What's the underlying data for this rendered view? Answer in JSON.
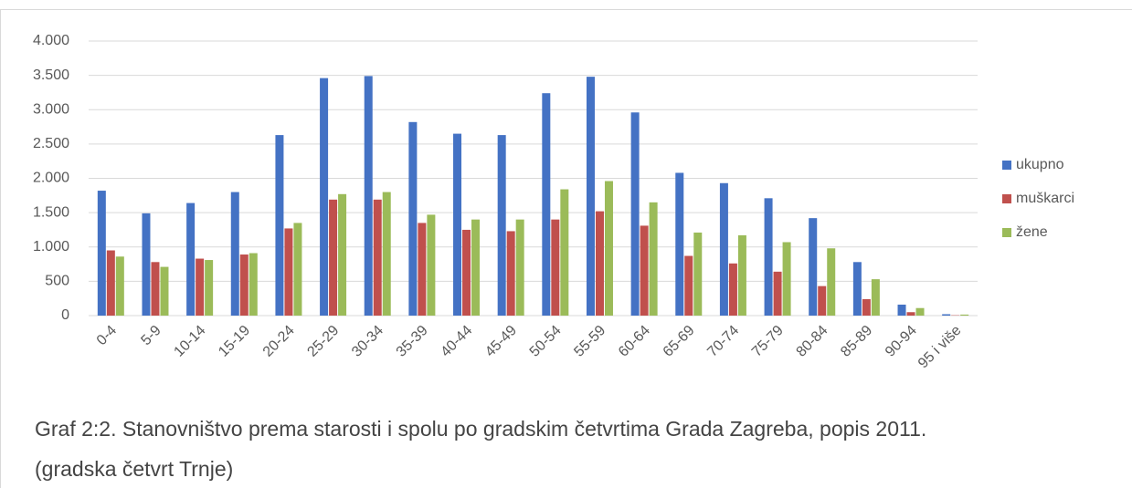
{
  "chart_data": {
    "type": "bar",
    "caption": "Graf 2:2. Stanovništvo prema starosti i spolu po gradskim četvrtima Grada Zagreba, popis 2011. (gradska četvrt Trnje)",
    "categories": [
      "0-4",
      "5-9",
      "10-14",
      "15-19",
      "20-24",
      "25-29",
      "30-34",
      "35-39",
      "40-44",
      "45-49",
      "50-54",
      "55-59",
      "60-64",
      "65-69",
      "70-74",
      "75-79",
      "80-84",
      "85-89",
      "90-94",
      "95 i više"
    ],
    "series": [
      {
        "name": "ukupno",
        "color": "#4472c4",
        "values": [
          1820,
          1490,
          1640,
          1800,
          2630,
          3460,
          3490,
          2820,
          2650,
          2630,
          3240,
          3480,
          2960,
          2080,
          1930,
          1710,
          1420,
          780,
          160,
          20
        ]
      },
      {
        "name": "muškarci",
        "color": "#c0504d",
        "values": [
          950,
          780,
          830,
          890,
          1270,
          1690,
          1690,
          1350,
          1250,
          1230,
          1400,
          1520,
          1310,
          870,
          760,
          640,
          430,
          240,
          50,
          5
        ]
      },
      {
        "name": "žene",
        "color": "#9bbb59",
        "values": [
          860,
          710,
          810,
          910,
          1350,
          1770,
          1800,
          1470,
          1400,
          1400,
          1840,
          1960,
          1650,
          1210,
          1170,
          1070,
          980,
          530,
          110,
          15
        ]
      }
    ],
    "ylim": [
      0,
      4000
    ],
    "yticks": [
      0,
      500,
      {
        "value": 1000,
        "label": "1.000"
      },
      {
        "value": 1500,
        "label": "1.500"
      },
      {
        "value": 2000,
        "label": "2.000"
      },
      {
        "value": 2500,
        "label": "2.500"
      },
      {
        "value": 3000,
        "label": "3.000"
      },
      {
        "value": 3500,
        "label": "3.500"
      },
      {
        "value": 4000,
        "label": "4.000"
      }
    ],
    "grid": true,
    "legend": "right"
  }
}
